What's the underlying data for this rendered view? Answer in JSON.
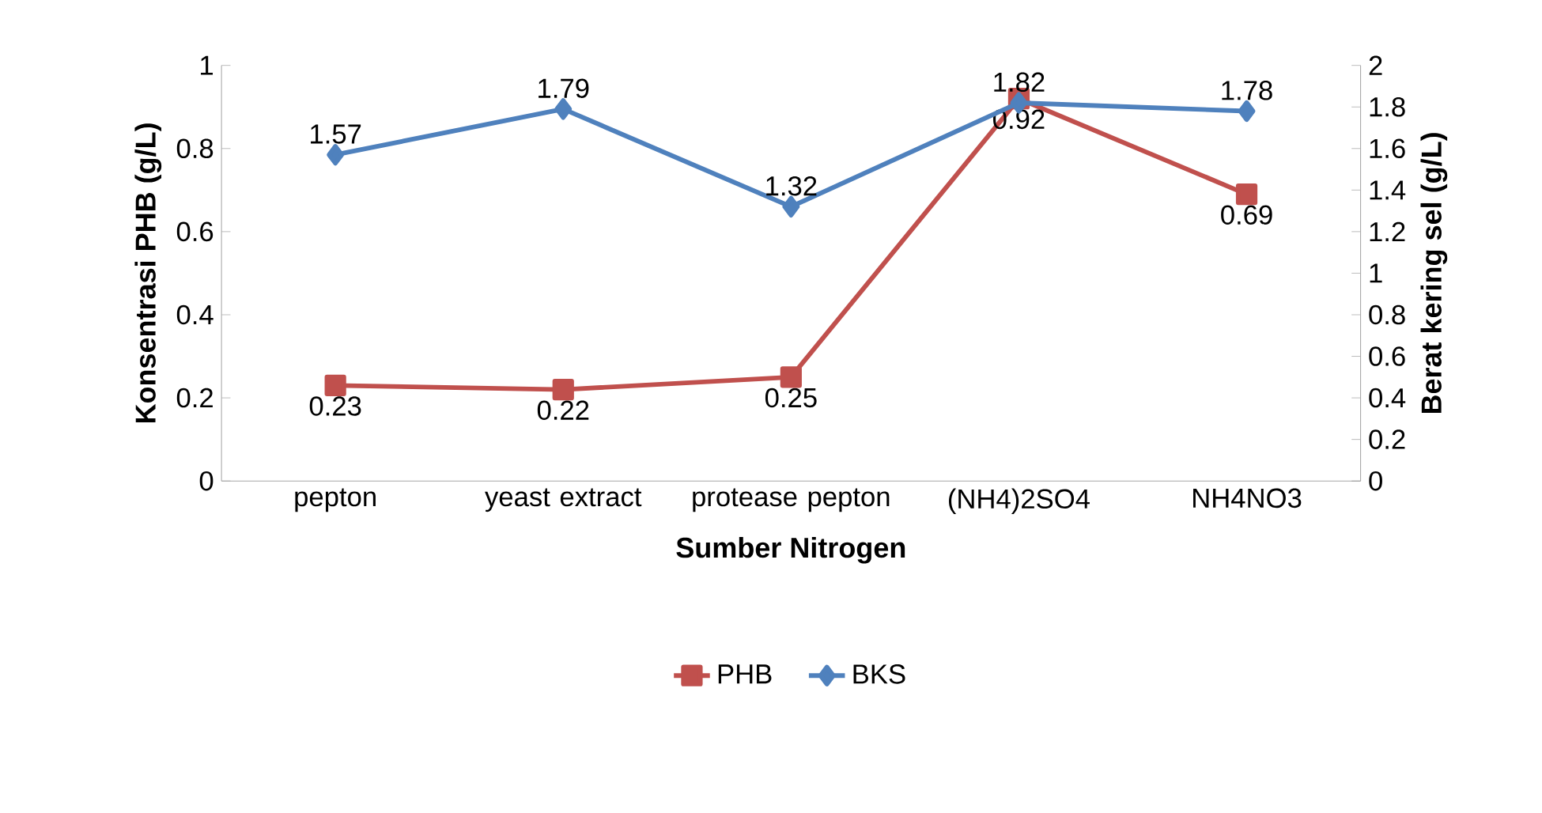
{
  "chart_data": {
    "type": "line",
    "xlabel": "Sumber Nitrogen",
    "ylabel": "Konsentrasi PHB (g/L)",
    "y2label": "Berat kering sel (g/L)",
    "categories": [
      "pepton",
      "yeast extract",
      "protease pepton",
      "(NH4)2SO4",
      "NH4NO3"
    ],
    "series": [
      {
        "name": "PHB",
        "color": "#c0504d",
        "marker": "square",
        "values": [
          0.23,
          0.22,
          0.25,
          0.92,
          0.69
        ]
      },
      {
        "name": "BKS",
        "color": "#4f81bd",
        "marker": "diamond",
        "axis": "y2",
        "values": [
          1.57,
          1.79,
          1.32,
          1.82,
          1.78
        ]
      }
    ],
    "ylim": [
      0,
      1
    ],
    "yticks": [
      0,
      0.2,
      0.4,
      0.6,
      0.8,
      1
    ],
    "y2lim": [
      0,
      2
    ],
    "y2ticks": [
      0,
      0.2,
      0.4,
      0.6,
      0.8,
      1,
      1.2,
      1.4,
      1.6,
      1.8,
      2
    ],
    "data_labels": true,
    "legend": "bottom",
    "grid": false,
    "line_style": "solid"
  }
}
